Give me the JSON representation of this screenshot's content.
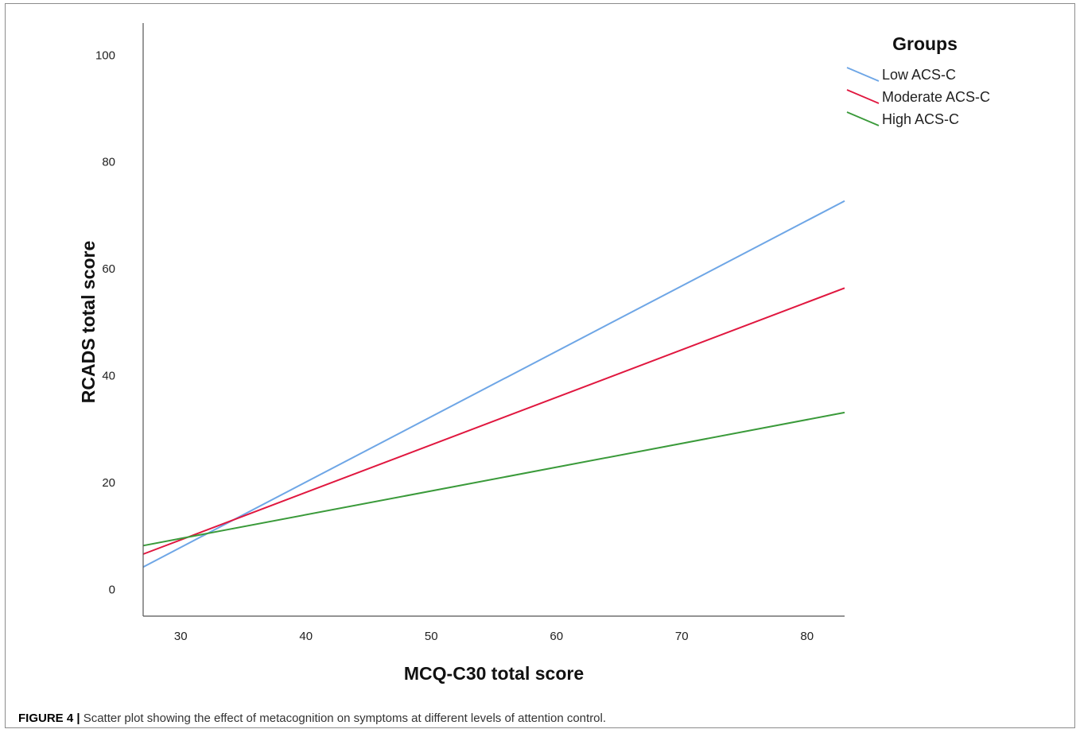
{
  "chart_data": {
    "type": "line",
    "title": "",
    "xlabel": "MCQ-C30 total score",
    "ylabel": "RCADS total score",
    "xlim": [
      27,
      83
    ],
    "ylim": [
      -5,
      106
    ],
    "xticks": [
      30,
      40,
      50,
      60,
      70,
      80
    ],
    "yticks": [
      0,
      20,
      40,
      60,
      80,
      100
    ],
    "grid": false,
    "legend": {
      "title": "Groups",
      "placement": "top-right"
    },
    "series": [
      {
        "name": "Low ACS-C",
        "color": "#6ea6e6",
        "x": [
          27,
          83
        ],
        "y": [
          4.2,
          72.7
        ]
      },
      {
        "name": "Moderate ACS-C",
        "color": "#e0173f",
        "x": [
          27,
          83
        ],
        "y": [
          6.6,
          56.4
        ]
      },
      {
        "name": "High ACS-C",
        "color": "#3a9a3a",
        "x": [
          27,
          83
        ],
        "y": [
          8.2,
          33.1
        ]
      }
    ]
  },
  "caption": {
    "label": "FIGURE 4 |",
    "text": " Scatter plot showing the effect of metacognition on symptoms at different levels of attention control."
  }
}
